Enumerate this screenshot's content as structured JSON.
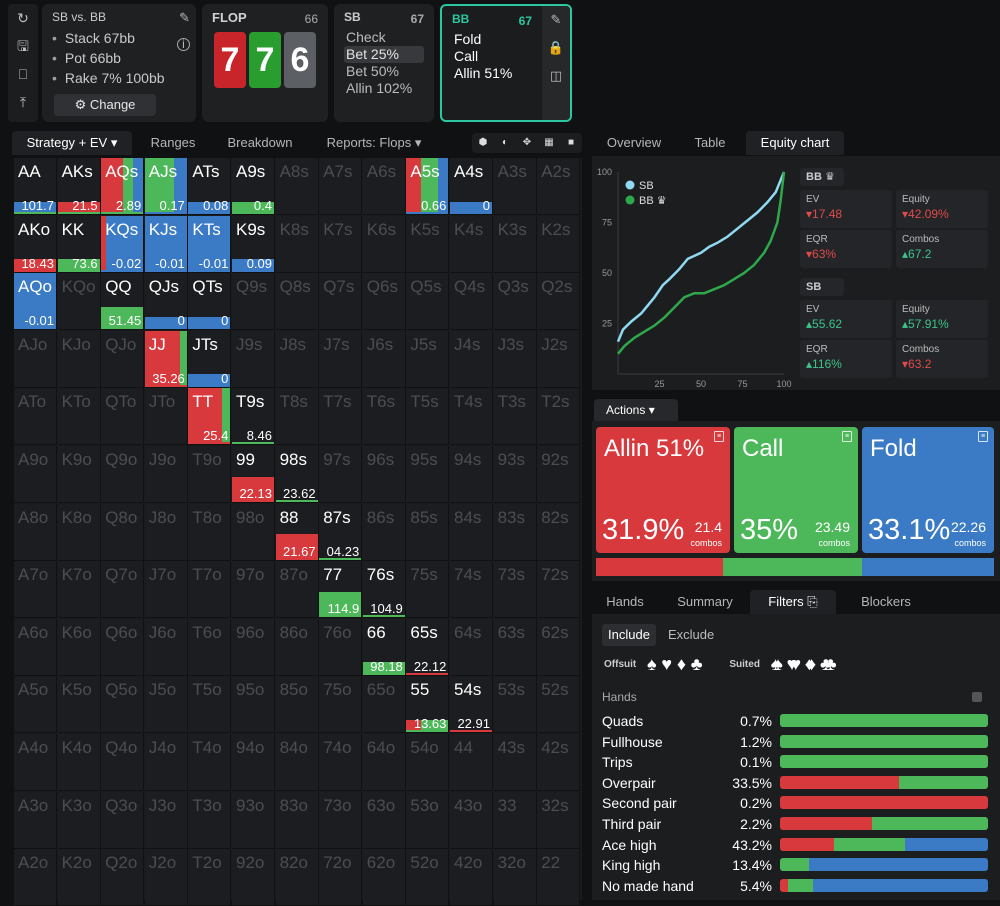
{
  "tools": [
    "refresh-icon",
    "save-icon",
    "gamepad-icon",
    "align-icon"
  ],
  "scenario": {
    "title": "SB vs. BB",
    "stack": "Stack 67bb",
    "pot": "Pot 66bb",
    "rake": "Rake 7% 100bb",
    "change_label": "Change"
  },
  "flop": {
    "label": "FLOP",
    "number": "66",
    "cards": [
      {
        "rank": "7",
        "color": "#c8252b"
      },
      {
        "rank": "7",
        "color": "#2a9d2f"
      },
      {
        "rank": "6",
        "color": "#5c5f63"
      }
    ]
  },
  "sb_box": {
    "player": "SB",
    "number": "67",
    "items": [
      "Check",
      "Bet 25%",
      "Bet 50%",
      "Allin 102%"
    ],
    "selected": 1
  },
  "bb_box": {
    "player": "BB",
    "number": "67",
    "items": [
      "Fold",
      "Call",
      "Allin 51%"
    ]
  },
  "left_tabs": [
    "Strategy + EV",
    "Ranges",
    "Breakdown",
    "Reports: Flops"
  ],
  "right_tabs": [
    "Overview",
    "Table",
    "Equity chart"
  ],
  "equity_chart": {
    "legend": [
      {
        "name": "SB",
        "color": "#8fd9f2"
      },
      {
        "name": "BB",
        "color": "#2ea84a"
      }
    ],
    "y_ticks": [
      "100",
      "75",
      "50",
      "25"
    ],
    "x_ticks": [
      "25",
      "50",
      "75",
      "100"
    ],
    "sb_curve": [
      [
        0,
        16
      ],
      [
        3,
        22
      ],
      [
        8,
        26
      ],
      [
        14,
        30
      ],
      [
        18,
        34
      ],
      [
        22,
        38
      ],
      [
        27,
        44
      ],
      [
        31,
        47
      ],
      [
        37,
        52
      ],
      [
        42,
        57
      ],
      [
        50,
        60
      ],
      [
        55,
        63
      ],
      [
        60,
        65
      ],
      [
        66,
        68
      ],
      [
        72,
        72
      ],
      [
        78,
        76
      ],
      [
        84,
        80
      ],
      [
        90,
        85
      ],
      [
        95,
        90
      ],
      [
        98,
        96
      ],
      [
        100,
        100
      ]
    ],
    "bb_curve": [
      [
        0,
        10
      ],
      [
        4,
        14
      ],
      [
        10,
        18
      ],
      [
        16,
        21
      ],
      [
        22,
        24
      ],
      [
        28,
        28
      ],
      [
        34,
        33
      ],
      [
        40,
        38
      ],
      [
        46,
        40
      ],
      [
        52,
        40
      ],
      [
        58,
        42
      ],
      [
        64,
        44
      ],
      [
        70,
        47
      ],
      [
        76,
        50
      ],
      [
        82,
        54
      ],
      [
        88,
        60
      ],
      [
        92,
        66
      ],
      [
        96,
        75
      ],
      [
        98,
        86
      ],
      [
        100,
        100
      ]
    ]
  },
  "bb_stats": {
    "label": "BB",
    "ev_label": "EV",
    "ev": "17.48",
    "equity_label": "Equity",
    "equity": "42.09%",
    "eqr_label": "EQR",
    "eqr": "63%",
    "combos_label": "Combos",
    "combos": "67.2"
  },
  "sb_stats": {
    "label": "SB",
    "ev_label": "EV",
    "ev": "55.62",
    "equity_label": "Equity",
    "equity": "57.91%",
    "eqr_label": "EQR",
    "eqr": "116%",
    "combos_label": "Combos",
    "combos": "63.2"
  },
  "actions": {
    "header": "Actions",
    "boxes": [
      {
        "name": "Allin 51%",
        "pct": "31.9%",
        "combos": "21.4",
        "color": "#d8393c",
        "freq": 31.9
      },
      {
        "name": "Call",
        "pct": "35%",
        "combos": "23.49",
        "color": "#4db85a",
        "freq": 35
      },
      {
        "name": "Fold",
        "pct": "33.1%",
        "combos": "22.26",
        "color": "#3b7ac4",
        "freq": 33.1
      }
    ],
    "combos_label": "combos"
  },
  "bottom_tabs": [
    "Hands",
    "Summary",
    "Filters",
    "Blockers"
  ],
  "filters": {
    "include": "Include",
    "exclude": "Exclude",
    "offsuit_label": "Offsuit",
    "suited_label": "Suited",
    "offsuit_suits": [
      "♠",
      "♥",
      "♦",
      "♣"
    ],
    "suited_suits": [
      "♠♠",
      "♥♥",
      "♦♦",
      "♣♣"
    ],
    "hands_header": "Hands",
    "rows": [
      {
        "name": "Quads",
        "pct": "0.7%",
        "r": 0,
        "g": 100,
        "b": 0
      },
      {
        "name": "Fullhouse",
        "pct": "1.2%",
        "r": 0,
        "g": 100,
        "b": 0
      },
      {
        "name": "Trips",
        "pct": "0.1%",
        "r": 0,
        "g": 100,
        "b": 0
      },
      {
        "name": "Overpair",
        "pct": "33.5%",
        "r": 57,
        "g": 43,
        "b": 0
      },
      {
        "name": "Second pair",
        "pct": "0.2%",
        "r": 100,
        "g": 0,
        "b": 0
      },
      {
        "name": "Third pair",
        "pct": "2.2%",
        "r": 44,
        "g": 56,
        "b": 0
      },
      {
        "name": "Ace high",
        "pct": "43.2%",
        "r": 26,
        "g": 34,
        "b": 40
      },
      {
        "name": "King high",
        "pct": "13.4%",
        "r": 0,
        "g": 14,
        "b": 86
      },
      {
        "name": "No made hand",
        "pct": "5.4%",
        "r": 4,
        "g": 12,
        "b": 84
      }
    ]
  },
  "grid": {
    "ranks": [
      "A",
      "K",
      "Q",
      "J",
      "T",
      "9",
      "8",
      "7",
      "6",
      "5",
      "4",
      "3",
      "2"
    ],
    "cells": {
      "AA": {
        "r": 0,
        "g": 0,
        "b": 100,
        "h": 22,
        "ev": "101.7",
        "evc": "g"
      },
      "AKs": {
        "r": 100,
        "g": 0,
        "b": 0,
        "h": 22,
        "ev": "21.5",
        "evc": "g"
      },
      "AQs": {
        "r": 52,
        "g": 24,
        "b": 24,
        "h": 100,
        "ev": "2.89",
        "evc": "g"
      },
      "AJs": {
        "r": 0,
        "g": 70,
        "b": 30,
        "h": 100,
        "ev": "0.17",
        "evc": "b"
      },
      "ATs": {
        "r": 0,
        "g": 0,
        "b": 100,
        "h": 22,
        "ev": "0.08",
        "evc": "b"
      },
      "A9s": {
        "r": 0,
        "g": 100,
        "b": 0,
        "h": 22,
        "ev": "0.4",
        "evc": "g"
      },
      "A5s": {
        "r": 35,
        "g": 40,
        "b": 25,
        "h": 100,
        "ev": "0.66",
        "evc": "b"
      },
      "A4s": {
        "r": 0,
        "g": 0,
        "b": 100,
        "h": 22,
        "ev": "0",
        "evc": "b"
      },
      "AKo": {
        "r": 100,
        "g": 0,
        "b": 0,
        "h": 22,
        "ev": "18.43",
        "evc": "r"
      },
      "KK": {
        "r": 0,
        "g": 100,
        "b": 0,
        "h": 22,
        "ev": "73.6",
        "evc": "g"
      },
      "KQs": {
        "r": 12,
        "g": 0,
        "b": 88,
        "h": 100,
        "ev": "-0.02",
        "evc": "b"
      },
      "KJs": {
        "r": 0,
        "g": 0,
        "b": 100,
        "h": 100,
        "ev": "-0.01",
        "evc": "b"
      },
      "KTs": {
        "r": 0,
        "g": 0,
        "b": 100,
        "h": 100,
        "ev": "-0.01",
        "evc": "b"
      },
      "K9s": {
        "r": 0,
        "g": 0,
        "b": 100,
        "h": 22,
        "ev": "0.09",
        "evc": "b"
      },
      "AQo": {
        "r": 0,
        "g": 0,
        "b": 100,
        "h": 100,
        "ev": "-0.01",
        "evc": "b"
      },
      "QQ": {
        "r": 0,
        "g": 100,
        "b": 0,
        "h": 40,
        "ev": "51.45",
        "evc": "g"
      },
      "QJs": {
        "r": 0,
        "g": 0,
        "b": 100,
        "h": 22,
        "ev": "0",
        "evc": "b"
      },
      "QTs": {
        "r": 0,
        "g": 0,
        "b": 100,
        "h": 22,
        "ev": "0",
        "evc": "b"
      },
      "JJ": {
        "r": 85,
        "g": 15,
        "b": 0,
        "h": 100,
        "ev": "35.26",
        "evc": "r"
      },
      "JTs": {
        "r": 0,
        "g": 0,
        "b": 100,
        "h": 22,
        "ev": "0",
        "evc": "b"
      },
      "TT": {
        "r": 80,
        "g": 20,
        "b": 0,
        "h": 100,
        "ev": "25.4",
        "evc": "r"
      },
      "T9s": {
        "r": 0,
        "g": 0,
        "b": 0,
        "h": 0,
        "ev": "8.46",
        "evc": "g"
      },
      "99": {
        "r": 100,
        "g": 0,
        "b": 0,
        "h": 45,
        "ev": "22.13",
        "evc": "r"
      },
      "98s": {
        "r": 0,
        "g": 0,
        "b": 0,
        "h": 0,
        "ev": "23.62",
        "evc": "g"
      },
      "88": {
        "r": 100,
        "g": 0,
        "b": 0,
        "h": 45,
        "ev": "21.67",
        "evc": "r"
      },
      "87s": {
        "r": 0,
        "g": 0,
        "b": 0,
        "h": 0,
        "ev": "04.23",
        "evc": "g"
      },
      "77": {
        "r": 0,
        "g": 100,
        "b": 0,
        "h": 45,
        "ev": "114.9",
        "evc": "g"
      },
      "76s": {
        "r": 0,
        "g": 0,
        "b": 0,
        "h": 0,
        "ev": "104.9",
        "evc": "g"
      },
      "66": {
        "r": 0,
        "g": 100,
        "b": 0,
        "h": 22,
        "ev": "98.18",
        "evc": "g"
      },
      "65s": {
        "r": 0,
        "g": 0,
        "b": 0,
        "h": 0,
        "ev": "22.12",
        "evc": "r"
      },
      "55": {
        "r": 35,
        "g": 65,
        "b": 0,
        "h": 22,
        "ev": "13.63",
        "evc": "g"
      },
      "54s": {
        "r": 0,
        "g": 0,
        "b": 0,
        "h": 0,
        "ev": "22.91",
        "evc": "r"
      }
    }
  }
}
